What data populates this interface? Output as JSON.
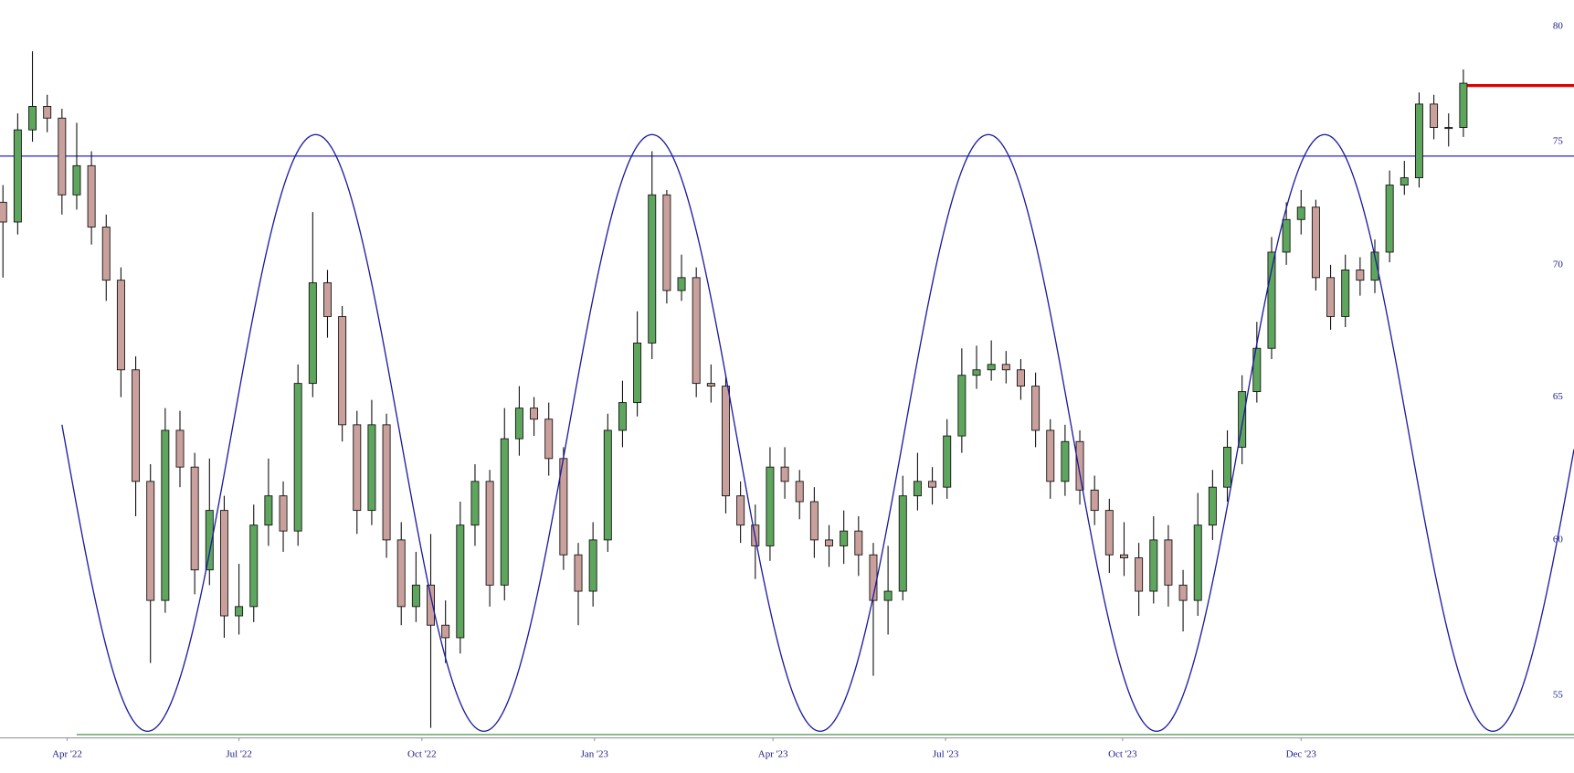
{
  "chart_data": {
    "type": "candlestick",
    "log_scale": true,
    "up_color": "#5ea65e",
    "down_color": "#c9a09c",
    "open": [
      72.5,
      71.7,
      75.5,
      76.5,
      76.0,
      72.8,
      74.0,
      71.5,
      69.4,
      66.0,
      62.0,
      58.0,
      63.8,
      62.5,
      59.0,
      61.0,
      57.5,
      57.8,
      60.5,
      61.5,
      60.3,
      65.5,
      69.3,
      68.0,
      64.0,
      61.0,
      64.0,
      60.0,
      57.8,
      58.5,
      57.2,
      56.8,
      60.5,
      62.0,
      58.5,
      63.5,
      64.6,
      64.2,
      62.8,
      59.5,
      58.3,
      60.0,
      63.8,
      64.8,
      67.0,
      72.8,
      69.0,
      69.5,
      65.5,
      65.4,
      61.5,
      60.5,
      59.8,
      62.5,
      62.0,
      61.3,
      60.0,
      59.8,
      60.3,
      59.5,
      58.0,
      58.3,
      61.5,
      62.0,
      61.8,
      63.6,
      65.8,
      66.0,
      66.2,
      66.0,
      65.4,
      63.8,
      62.0,
      63.4,
      61.7,
      61.0,
      59.5,
      59.4,
      58.3,
      60.0,
      58.5,
      58.0,
      60.5,
      61.8,
      63.2,
      65.2,
      66.8,
      70.5,
      71.8,
      72.3,
      69.5,
      68.0,
      69.8,
      69.4,
      70.5,
      73.2,
      73.5,
      76.6,
      75.6,
      75.6
    ],
    "high": [
      73.2,
      76.2,
      78.9,
      77.0,
      76.4,
      75.8,
      74.6,
      72.0,
      69.9,
      66.5,
      62.6,
      64.6,
      64.5,
      63.0,
      62.8,
      61.5,
      59.2,
      61.2,
      62.8,
      62.0,
      66.2,
      72.1,
      69.8,
      68.4,
      64.5,
      64.9,
      64.4,
      60.6,
      59.6,
      60.2,
      58.0,
      61.3,
      62.6,
      62.4,
      64.6,
      65.4,
      65.0,
      64.8,
      63.2,
      59.9,
      60.6,
      64.4,
      65.6,
      68.2,
      74.6,
      73.0,
      70.4,
      69.9,
      66.2,
      65.8,
      62.0,
      61.2,
      63.2,
      63.2,
      62.4,
      61.8,
      60.5,
      61.0,
      60.8,
      59.9,
      59.8,
      62.2,
      63.0,
      62.5,
      64.2,
      66.8,
      66.9,
      67.1,
      66.7,
      66.4,
      65.9,
      64.2,
      64.0,
      63.8,
      62.2,
      61.4,
      60.6,
      59.9,
      60.8,
      60.5,
      59.0,
      61.6,
      62.4,
      63.8,
      65.8,
      67.8,
      71.1,
      72.5,
      73.0,
      72.6,
      70.0,
      70.4,
      70.3,
      71.0,
      73.8,
      74.2,
      77.1,
      77.0,
      76.2,
      78.1
    ],
    "low": [
      69.5,
      71.2,
      75.0,
      75.4,
      72.0,
      72.2,
      70.8,
      68.6,
      65.0,
      60.8,
      56.0,
      57.6,
      61.8,
      58.2,
      58.5,
      56.8,
      56.9,
      57.3,
      59.8,
      59.6,
      59.8,
      65.0,
      67.2,
      63.4,
      60.2,
      60.5,
      59.4,
      57.2,
      57.3,
      54.0,
      56.0,
      56.3,
      59.8,
      57.8,
      58.0,
      62.9,
      63.6,
      62.2,
      59.0,
      57.2,
      57.8,
      59.6,
      63.2,
      64.3,
      66.4,
      68.5,
      68.6,
      65.0,
      64.8,
      60.9,
      59.9,
      58.7,
      59.3,
      61.4,
      60.7,
      59.4,
      59.1,
      59.2,
      58.8,
      55.6,
      56.9,
      58.0,
      61.0,
      61.2,
      61.4,
      63.0,
      65.3,
      65.6,
      65.5,
      64.9,
      63.2,
      61.4,
      61.5,
      61.2,
      60.5,
      58.9,
      58.8,
      57.5,
      57.9,
      57.8,
      57.0,
      57.5,
      60.0,
      61.3,
      62.6,
      64.8,
      66.4,
      70.0,
      71.2,
      69.0,
      67.5,
      67.6,
      68.8,
      68.9,
      70.1,
      72.8,
      73.1,
      75.1,
      74.8,
      75.2
    ],
    "close": [
      71.7,
      75.5,
      76.5,
      76.0,
      72.8,
      74.0,
      71.5,
      69.4,
      66.0,
      62.0,
      58.0,
      63.8,
      62.5,
      59.0,
      61.0,
      57.5,
      57.8,
      60.5,
      61.5,
      60.3,
      65.5,
      69.3,
      68.0,
      64.0,
      61.0,
      64.0,
      60.0,
      57.8,
      58.5,
      57.2,
      56.8,
      60.5,
      62.0,
      58.5,
      63.5,
      64.6,
      64.2,
      62.8,
      59.5,
      58.3,
      60.0,
      63.8,
      64.8,
      67.0,
      72.8,
      69.0,
      69.5,
      65.5,
      65.4,
      61.5,
      60.5,
      59.8,
      62.5,
      62.0,
      61.3,
      60.0,
      59.8,
      60.3,
      59.5,
      58.0,
      58.3,
      61.5,
      62.0,
      61.8,
      63.6,
      65.8,
      66.0,
      66.2,
      66.0,
      65.4,
      63.8,
      62.0,
      63.4,
      61.7,
      61.0,
      59.5,
      59.4,
      58.3,
      60.0,
      58.5,
      58.0,
      60.5,
      61.8,
      63.2,
      65.2,
      66.8,
      70.5,
      71.8,
      72.3,
      69.5,
      68.0,
      69.8,
      69.4,
      70.5,
      73.2,
      73.5,
      76.6,
      75.6,
      75.6,
      77.5
    ],
    "xlim": [
      -0.2,
      106.5
    ],
    "xticks": [
      {
        "value": 4.35,
        "label": "Apr '22"
      },
      {
        "value": 16.0,
        "label": "Jul '22"
      },
      {
        "value": 28.4,
        "label": "Oct '22"
      },
      {
        "value": 40.1,
        "label": "Jan '23"
      },
      {
        "value": 52.2,
        "label": "Apr '23"
      },
      {
        "value": 63.9,
        "label": "Jul '23"
      },
      {
        "value": 75.9,
        "label": "Oct '23"
      },
      {
        "value": 88.0,
        "label": "Dec '23"
      }
    ],
    "ylim": [
      53.7,
      81.2
    ],
    "yticks": [
      55,
      60,
      65,
      70,
      75,
      80
    ],
    "hlines": [
      {
        "value": 74.4,
        "color": "#3a3ad0",
        "from": -0.2
      },
      {
        "value": 53.8,
        "color": "#5a9a5a",
        "from": 5.0
      },
      {
        "value": 77.4,
        "color": "#e00000",
        "from": 99
      }
    ],
    "cycle": {
      "high": 75.3,
      "low": 53.9,
      "period": 22.8,
      "trough": 9.8,
      "start": 4.0,
      "end": 106.5,
      "color": "#1a1aa0"
    }
  }
}
